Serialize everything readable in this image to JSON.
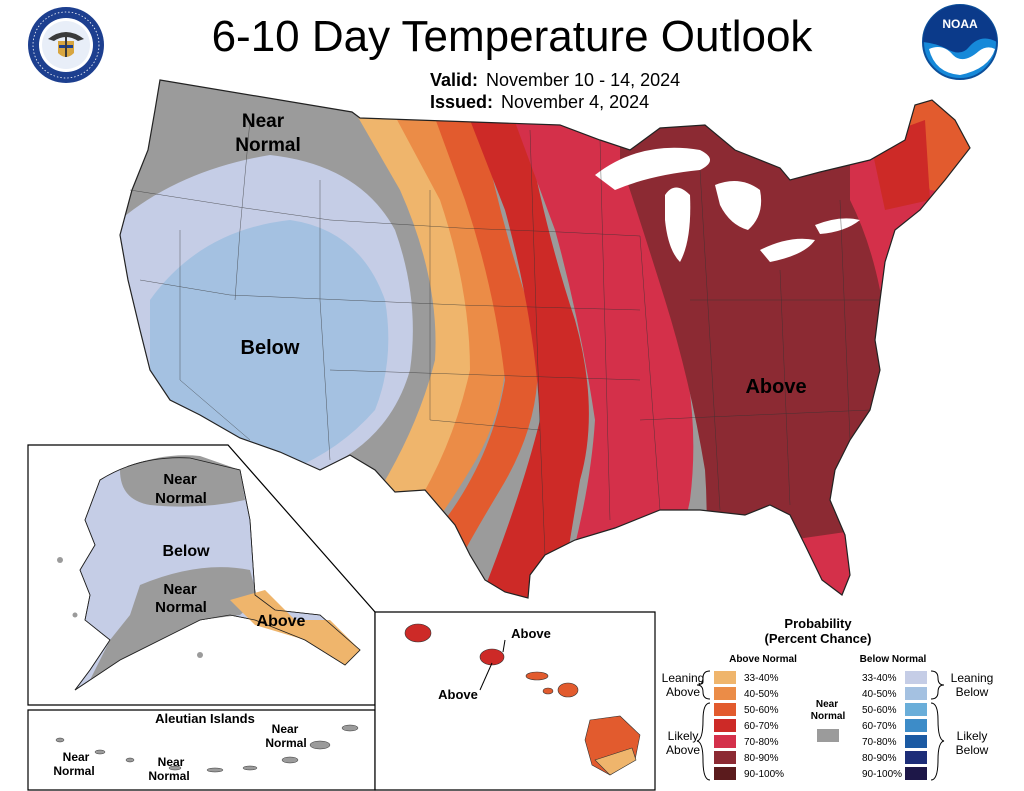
{
  "header": {
    "title": "6-10 Day Temperature Outlook",
    "valid_label": "Valid:",
    "valid_value": "November 10 - 14, 2024",
    "issued_label": "Issued:",
    "issued_value": "November 4, 2024",
    "left_logo": "department-of-commerce-seal",
    "left_logo_text": "DEPARTMENT OF COMMERCE · UNITED STATES OF AMERICA",
    "right_logo": "noaa-logo",
    "right_logo_text": "NOAA"
  },
  "conus_labels": {
    "near_normal_1": "Near",
    "near_normal_2": "Normal",
    "below": "Below",
    "above": "Above"
  },
  "alaska_labels": {
    "near_normal_top_1": "Near",
    "near_normal_top_2": "Normal",
    "below": "Below",
    "near_normal_mid_1": "Near",
    "near_normal_mid_2": "Normal",
    "above": "Above"
  },
  "aleutian": {
    "title": "Aleutian Islands",
    "label_left_1": "Near",
    "label_left_2": "Normal",
    "label_mid_1": "Near",
    "label_mid_2": "Normal",
    "label_right_1": "Near",
    "label_right_2": "Normal"
  },
  "hawaii_labels": {
    "above_top": "Above",
    "above_bottom": "Above"
  },
  "legend": {
    "title_1": "Probability",
    "title_2": "(Percent Chance)",
    "above_header": "Above Normal",
    "below_header": "Below Normal",
    "near_label_1": "Near",
    "near_label_2": "Normal",
    "leaning_above_1": "Leaning",
    "leaning_above_2": "Above",
    "likely_above_1": "Likely",
    "likely_above_2": "Above",
    "leaning_below_1": "Leaning",
    "leaning_below_2": "Below",
    "likely_below_1": "Likely",
    "likely_below_2": "Below",
    "above_ranges": [
      "33-40%",
      "40-50%",
      "50-60%",
      "60-70%",
      "70-80%",
      "80-90%",
      "90-100%"
    ],
    "below_ranges": [
      "33-40%",
      "40-50%",
      "50-60%",
      "60-70%",
      "70-80%",
      "80-90%",
      "90-100%"
    ],
    "above_colors": [
      "#efb56c",
      "#eb8c47",
      "#e25b2e",
      "#cd2a27",
      "#d4304a",
      "#8c2a33",
      "#5b1b1d"
    ],
    "below_colors": [
      "#c5cde6",
      "#a4c1e1",
      "#6aaed9",
      "#3d8cc8",
      "#1b5aa3",
      "#1d2d78",
      "#1d1748"
    ],
    "near_color": "#9b9b9b"
  }
}
